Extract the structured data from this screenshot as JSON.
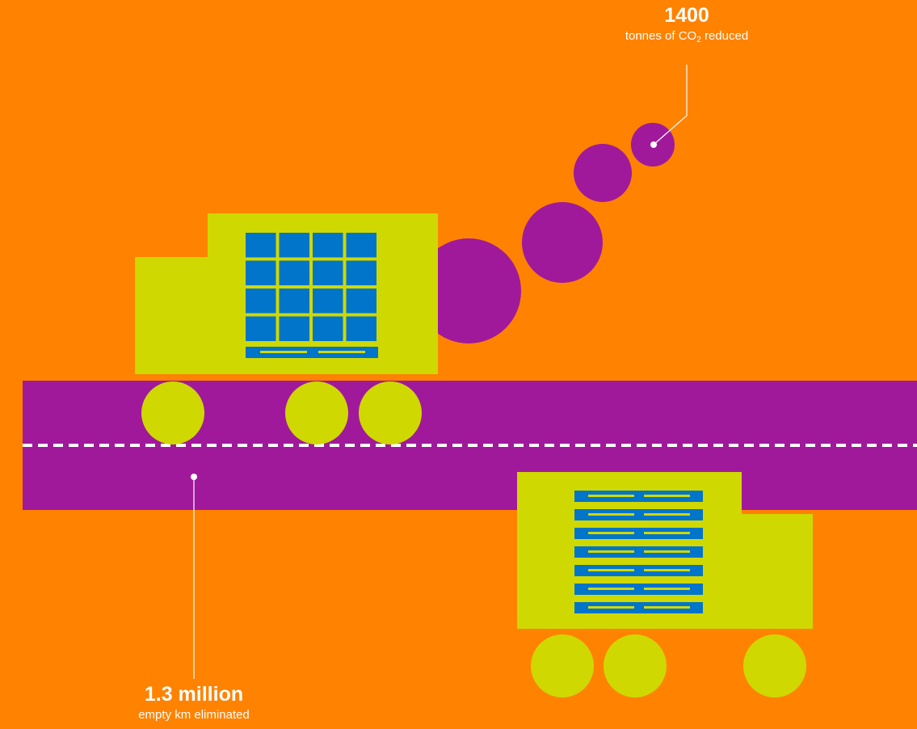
{
  "colors": {
    "background": "#FF8200",
    "road": "#A0199B",
    "truck": "#CFD800",
    "cargo": "#0075C9",
    "smoke": "#A0199B",
    "lane_marking": "#FFFFFF",
    "text": "#FFFFFF"
  },
  "stats": {
    "co2": {
      "value": "1400",
      "caption_prefix": "tonnes of CO",
      "caption_subscript": "2",
      "caption_suffix": " reduced"
    },
    "km": {
      "value": "1.3 million",
      "caption": "empty km eliminated"
    }
  },
  "icons": {
    "top_truck": "truck-with-container-icon",
    "bottom_truck": "truck-with-pallets-icon",
    "smoke": "exhaust-smoke-icon",
    "road": "road-icon"
  }
}
